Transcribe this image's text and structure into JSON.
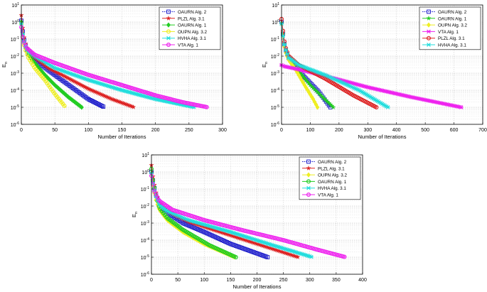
{
  "chart_data": [
    {
      "type": "line",
      "yscale": "log",
      "xlabel": "Number of Iterations",
      "ylabel": "E",
      "ylabel_sub": "n",
      "xlim": [
        0,
        300
      ],
      "xticks": [
        "0",
        "50",
        "100",
        "150",
        "200",
        "250",
        "300"
      ],
      "ylim": [
        1e-06,
        10
      ],
      "yticks": [
        {
          "base": "10",
          "exp": "1",
          "value": 10
        },
        {
          "base": "10",
          "exp": "0",
          "value": 1
        },
        {
          "base": "10",
          "exp": "-1",
          "value": 0.1
        },
        {
          "base": "10",
          "exp": "-2",
          "value": 0.01
        },
        {
          "base": "10",
          "exp": "-3",
          "value": 0.001
        },
        {
          "base": "10",
          "exp": "-4",
          "value": 0.0001
        },
        {
          "base": "10",
          "exp": "-5",
          "value": 1e-05
        },
        {
          "base": "10",
          "exp": "-6",
          "value": 1e-06
        }
      ],
      "legend_position": "top-right",
      "series": [
        {
          "name": "OAURN Alg. 2",
          "color": "#2222cc",
          "marker": "square",
          "x": [
            0,
            2,
            5,
            10,
            20,
            40,
            60,
            80,
            100,
            124
          ],
          "y": [
            1.2,
            0.3,
            0.06,
            0.015,
            0.006,
            0.0015,
            0.0004,
            0.00011,
            3e-05,
            1e-05
          ]
        },
        {
          "name": "PLZL Alg. 3.1",
          "color": "#dd2222",
          "marker": "star",
          "x": [
            0,
            2,
            5,
            10,
            20,
            40,
            70,
            100,
            135,
            168
          ],
          "y": [
            2.5,
            0.5,
            0.08,
            0.02,
            0.008,
            0.002,
            0.0005,
            0.00012,
            3e-05,
            1e-05
          ]
        },
        {
          "name": "OAURN Alg. 1",
          "color": "#22cc22",
          "marker": "diamond",
          "x": [
            0,
            2,
            5,
            10,
            20,
            35,
            50,
            70,
            90
          ],
          "y": [
            1.0,
            0.2,
            0.04,
            0.012,
            0.004,
            0.0008,
            0.0002,
            4e-05,
            1e-05
          ]
        },
        {
          "name": "OUPN Alg. 3.2",
          "color": "#eeee22",
          "marker": "circle",
          "x": [
            0,
            2,
            5,
            10,
            20,
            35,
            50,
            66
          ],
          "y": [
            0.8,
            0.15,
            0.03,
            0.009,
            0.002,
            0.0004,
            6e-05,
            1e-05
          ]
        },
        {
          "name": "HVHA Alg. 3.1",
          "color": "#22dddd",
          "marker": "x",
          "x": [
            0,
            2,
            5,
            10,
            20,
            50,
            100,
            150,
            200,
            258
          ],
          "y": [
            0.8,
            0.2,
            0.05,
            0.02,
            0.01,
            0.002,
            0.0004,
            0.0001,
            3e-05,
            1e-05
          ]
        },
        {
          "name": "VTA Alg. 1",
          "color": "#ee22ee",
          "marker": "circle",
          "x": [
            0,
            3,
            8,
            20,
            50,
            100,
            150,
            200,
            240,
            278
          ],
          "y": [
            0.5,
            0.08,
            0.03,
            0.012,
            0.004,
            0.0008,
            0.0002,
            5e-05,
            2e-05,
            1e-05
          ]
        }
      ]
    },
    {
      "type": "line",
      "yscale": "log",
      "xlabel": "Number of Iterations",
      "ylabel": "E",
      "ylabel_sub": "n",
      "xlim": [
        0,
        700
      ],
      "xticks": [
        "0",
        "100",
        "200",
        "300",
        "400",
        "500",
        "600",
        "700"
      ],
      "ylim": [
        1e-06,
        10
      ],
      "yticks": [
        {
          "base": "10",
          "exp": "1",
          "value": 10
        },
        {
          "base": "10",
          "exp": "0",
          "value": 1
        },
        {
          "base": "10",
          "exp": "-1",
          "value": 0.1
        },
        {
          "base": "10",
          "exp": "-2",
          "value": 0.01
        },
        {
          "base": "10",
          "exp": "-3",
          "value": 0.001
        },
        {
          "base": "10",
          "exp": "-4",
          "value": 0.0001
        },
        {
          "base": "10",
          "exp": "-5",
          "value": 1e-05
        },
        {
          "base": "10",
          "exp": "-6",
          "value": 1e-06
        }
      ],
      "legend_position": "top-right",
      "series": [
        {
          "name": "OAURN Alg. 2",
          "color": "#2222cc",
          "marker": "square",
          "x": [
            0,
            5,
            12,
            25,
            50,
            90,
            130,
            170
          ],
          "y": [
            1.0,
            0.2,
            0.03,
            0.008,
            0.002,
            0.0004,
            8e-05,
            1e-05
          ]
        },
        {
          "name": "OAURN Alg. 1",
          "color": "#22cc22",
          "marker": "star",
          "x": [
            0,
            5,
            12,
            25,
            50,
            100,
            150,
            180
          ],
          "y": [
            0.9,
            0.2,
            0.03,
            0.008,
            0.002,
            0.0002,
            3e-05,
            1e-05
          ]
        },
        {
          "name": "OUPN Alg. 3.2",
          "color": "#eeee22",
          "marker": "diamond",
          "x": [
            0,
            5,
            12,
            25,
            50,
            80,
            110,
            125
          ],
          "y": [
            0.8,
            0.15,
            0.02,
            0.006,
            0.0015,
            0.0002,
            3e-05,
            1e-05
          ]
        },
        {
          "name": "VTA Alg. 1",
          "color": "#ee22ee",
          "marker": "x",
          "x": [
            0,
            3,
            10,
            50,
            150,
            300,
            450,
            625
          ],
          "y": [
            0.003,
            0.0028,
            0.0025,
            0.0018,
            0.0007,
            0.00015,
            4e-05,
            1e-05
          ]
        },
        {
          "name": "PLZL Alg. 3.1",
          "color": "#dd2222",
          "marker": "circle",
          "x": [
            0,
            5,
            12,
            25,
            60,
            150,
            250,
            330
          ],
          "y": [
            1.5,
            0.3,
            0.04,
            0.01,
            0.003,
            0.0005,
            5e-05,
            1e-05
          ]
        },
        {
          "name": "HVHA Alg. 3.1",
          "color": "#22dddd",
          "marker": "x",
          "x": [
            0,
            5,
            12,
            25,
            60,
            150,
            270,
            370
          ],
          "y": [
            0.8,
            0.15,
            0.03,
            0.008,
            0.003,
            0.0008,
            0.0001,
            1e-05
          ]
        }
      ]
    },
    {
      "type": "line",
      "yscale": "log",
      "xlabel": "Number of Iterations",
      "ylabel": "E",
      "ylabel_sub": "n",
      "xlim": [
        0,
        400
      ],
      "xticks": [
        "0",
        "50",
        "100",
        "150",
        "200",
        "250",
        "300",
        "350",
        "400"
      ],
      "ylim": [
        1e-06,
        10
      ],
      "yticks": [
        {
          "base": "10",
          "exp": "1",
          "value": 10
        },
        {
          "base": "10",
          "exp": "0",
          "value": 1
        },
        {
          "base": "10",
          "exp": "-1",
          "value": 0.1
        },
        {
          "base": "10",
          "exp": "-2",
          "value": 0.01
        },
        {
          "base": "10",
          "exp": "-3",
          "value": 0.001
        },
        {
          "base": "10",
          "exp": "-4",
          "value": 0.0001
        },
        {
          "base": "10",
          "exp": "-5",
          "value": 1e-05
        },
        {
          "base": "10",
          "exp": "-6",
          "value": 1e-06
        }
      ],
      "legend_position": "top-right",
      "series": [
        {
          "name": "OAURN Alg. 2",
          "color": "#2222cc",
          "marker": "square",
          "x": [
            0,
            3,
            8,
            15,
            30,
            60,
            100,
            150,
            220
          ],
          "y": [
            1.0,
            0.3,
            0.05,
            0.012,
            0.004,
            0.001,
            0.0003,
            6e-05,
            1e-05
          ]
        },
        {
          "name": "PLZL Alg. 3.1",
          "color": "#dd2222",
          "marker": "star",
          "x": [
            0,
            3,
            8,
            15,
            30,
            70,
            130,
            200,
            278
          ],
          "y": [
            2.5,
            0.5,
            0.07,
            0.015,
            0.005,
            0.0012,
            0.0003,
            6e-05,
            1e-05
          ]
        },
        {
          "name": "OUPN Alg. 3.2",
          "color": "#eeee22",
          "marker": "diamond",
          "x": [
            0,
            3,
            8,
            15,
            30,
            60,
            100,
            158
          ],
          "y": [
            0.8,
            0.15,
            0.025,
            0.006,
            0.0015,
            0.0003,
            6e-05,
            1e-05
          ]
        },
        {
          "name": "OAURN Alg. 1",
          "color": "#22cc22",
          "marker": "circle",
          "x": [
            0,
            3,
            8,
            15,
            30,
            60,
            110,
            160
          ],
          "y": [
            1.5,
            0.3,
            0.05,
            0.008,
            0.002,
            0.0004,
            5e-05,
            1e-05
          ]
        },
        {
          "name": "HVHA Alg. 3.1",
          "color": "#22dddd",
          "marker": "x",
          "x": [
            0,
            3,
            8,
            15,
            30,
            70,
            150,
            230,
            305
          ],
          "y": [
            0.8,
            0.2,
            0.04,
            0.012,
            0.005,
            0.0015,
            0.0003,
            5e-05,
            1e-05
          ]
        },
        {
          "name": "VTA Alg. 1",
          "color": "#ee22ee",
          "marker": "circle",
          "x": [
            0,
            5,
            15,
            40,
            100,
            170,
            250,
            310,
            368
          ],
          "y": [
            0.6,
            0.08,
            0.02,
            0.006,
            0.0015,
            0.0004,
            0.0001,
            3e-05,
            1e-05
          ]
        }
      ]
    }
  ]
}
